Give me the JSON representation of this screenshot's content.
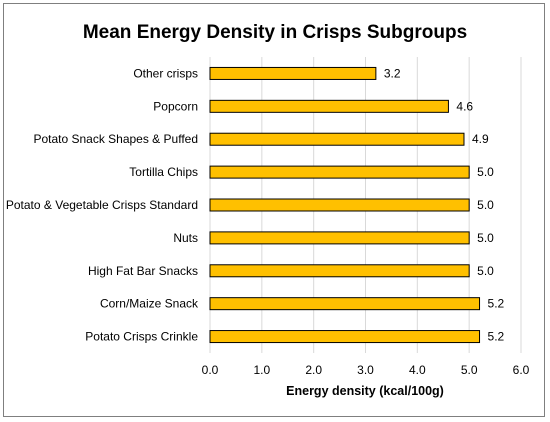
{
  "chart_data": {
    "type": "bar",
    "orientation": "horizontal",
    "title": "Mean Energy Density in Crisps Subgroups",
    "xlabel": "Energy density (kcal/100g)",
    "ylabel": "",
    "xlim": [
      0,
      6
    ],
    "x_ticks": [
      "0.0",
      "1.0",
      "2.0",
      "3.0",
      "4.0",
      "5.0",
      "6.0"
    ],
    "grid": "vertical",
    "legend": "none",
    "bar_color": "#ffc000",
    "bar_edge_color": "#000000",
    "categories": [
      "Other crisps",
      "Popcorn",
      "Potato Snack Shapes & Puffed",
      "Tortilla Chips",
      "Potato & Vegetable Crisps Standard",
      "Nuts",
      "High Fat Bar Snacks",
      "Corn/Maize Snack",
      "Potato Crisps Crinkle"
    ],
    "values": [
      3.2,
      4.6,
      4.9,
      5.0,
      5.0,
      5.0,
      5.0,
      5.2,
      5.2
    ],
    "value_labels": [
      "3.2",
      "4.6",
      "4.9",
      "5.0",
      "5.0",
      "5.0",
      "5.0",
      "5.2",
      "5.2"
    ]
  }
}
